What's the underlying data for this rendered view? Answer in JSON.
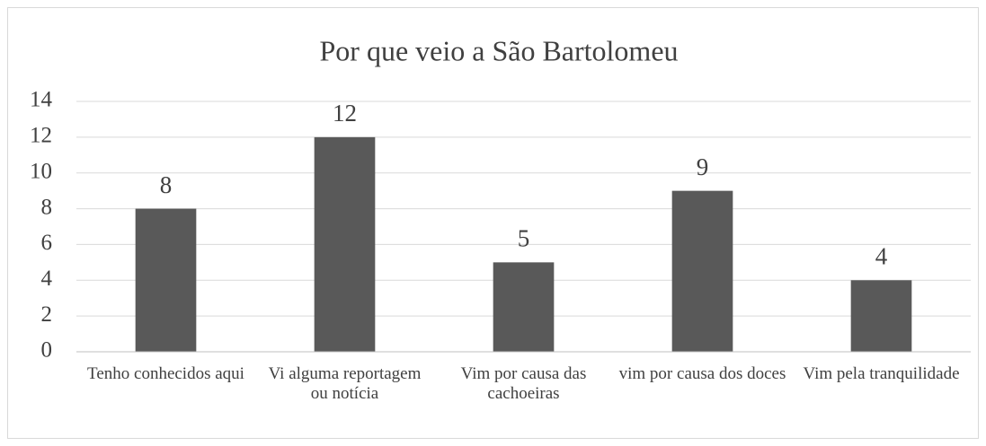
{
  "chart_data": {
    "type": "bar",
    "title": "Por que veio a São Bartolomeu",
    "categories": [
      "Tenho conhecidos aqui",
      "Vi alguma reportagem ou notícia",
      "Vim por causa das cachoeiras",
      "vim por causa dos doces",
      "Vim pela tranquilidade"
    ],
    "values": [
      8,
      12,
      5,
      9,
      4
    ],
    "color": "#595959",
    "ylim": [
      0,
      14
    ],
    "yticks": [
      0,
      2,
      4,
      6,
      8,
      10,
      12,
      14
    ],
    "grid": true
  }
}
